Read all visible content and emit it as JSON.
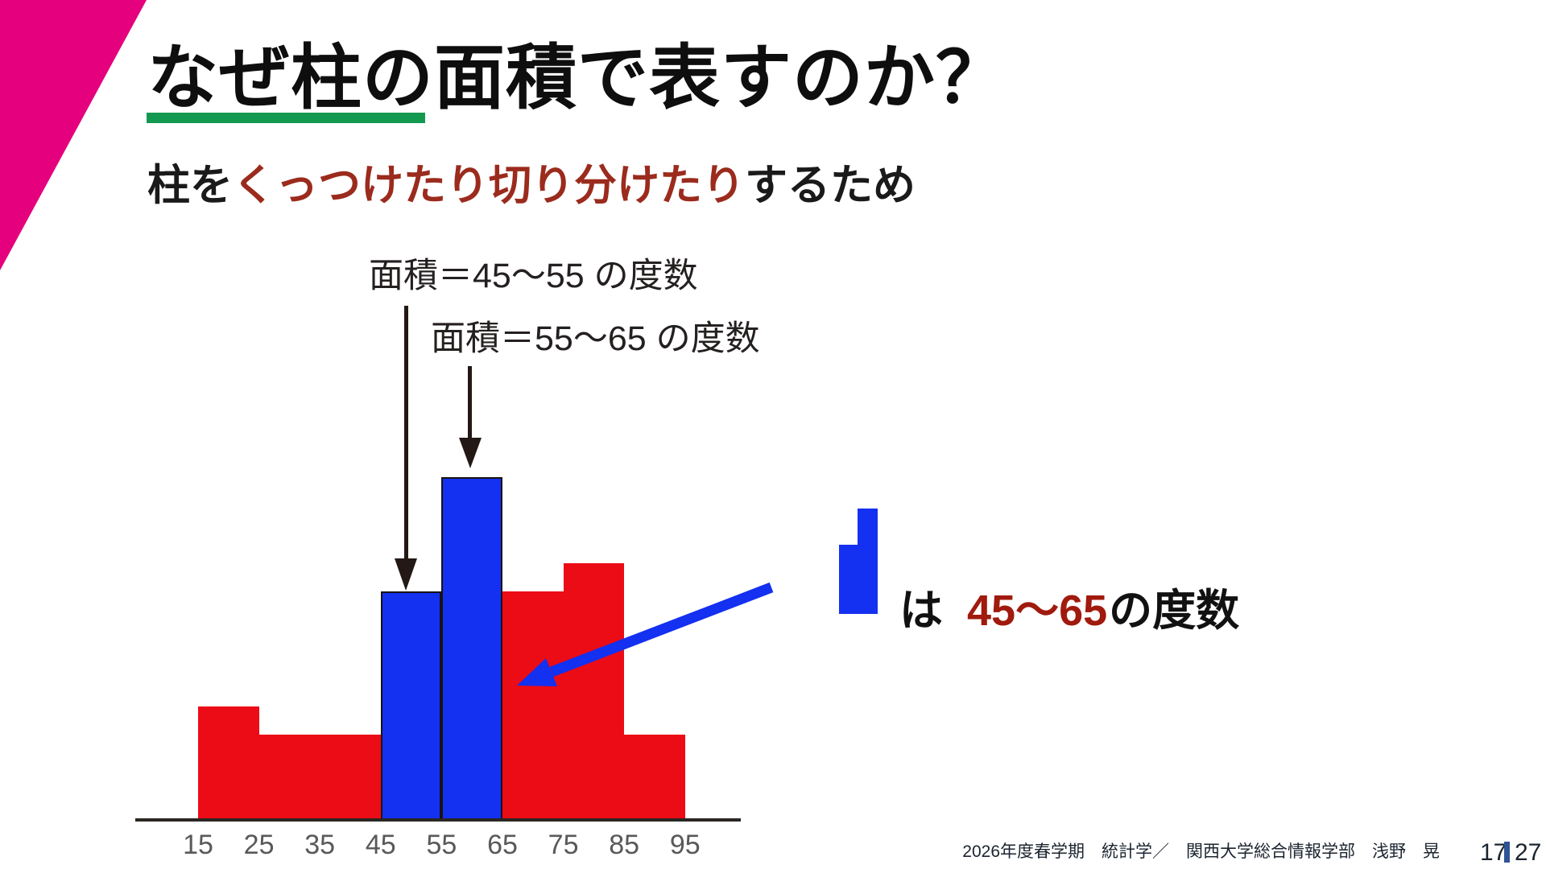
{
  "slide": {
    "title": "なぜ柱の面積で表すのか？",
    "subtitle_prefix": "柱を",
    "subtitle_highlight": "くっつけたり切り分けたり",
    "subtitle_suffix": "するため"
  },
  "annotations": {
    "area_45_55": "面積＝45～55 の度数",
    "area_55_65": "面積＝55～65 の度数"
  },
  "legend": {
    "prefix": "は",
    "range": "45～65",
    "suffix": "の度数"
  },
  "footer": {
    "course_info": "2026年度春学期　統計学／　関西大学総合情報学部　浅野　晃",
    "page_current": "17",
    "page_total": "27"
  },
  "colors": {
    "accent_triangle": "#E5007D",
    "title_underline": "#13994F",
    "subtitle_highlight_red": "#9B2B1D",
    "legend_range_red": "#A01A0D",
    "bar_red": "#EC0C16",
    "bar_blue": "#1430F0",
    "black_arrow": "#231815",
    "page_separator_blue": "#2F5496",
    "axis_line": "#2A2622",
    "tick_label_gray": "#595959"
  },
  "chart_data": {
    "type": "bar",
    "subtype": "histogram",
    "title": "",
    "xlabel": "",
    "ylabel": "",
    "grid": false,
    "y_axis_shown": false,
    "bin_edges": [
      15,
      25,
      35,
      45,
      55,
      65,
      75,
      85,
      95
    ],
    "frequencies": [
      4,
      3,
      3,
      8,
      12,
      8,
      9,
      3
    ],
    "bar_colors": [
      "red",
      "red",
      "red",
      "blue",
      "blue",
      "red",
      "red",
      "red"
    ],
    "x_tick_labels": [
      "15",
      "25",
      "35",
      "45",
      "55",
      "65",
      "75",
      "85",
      "95"
    ],
    "highlighted_range_note": "blue bars = 45–65"
  }
}
